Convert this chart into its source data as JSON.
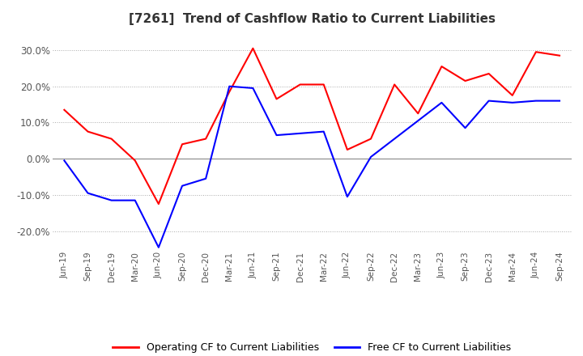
{
  "title": "[7261]  Trend of Cashflow Ratio to Current Liabilities",
  "x_labels": [
    "Jun-19",
    "Sep-19",
    "Dec-19",
    "Mar-20",
    "Jun-20",
    "Sep-20",
    "Dec-20",
    "Mar-21",
    "Jun-21",
    "Sep-21",
    "Dec-21",
    "Mar-22",
    "Jun-22",
    "Sep-22",
    "Dec-22",
    "Mar-23",
    "Jun-23",
    "Sep-23",
    "Dec-23",
    "Mar-24",
    "Jun-24",
    "Sep-24"
  ],
  "operating_cf": [
    0.135,
    0.075,
    0.055,
    -0.005,
    -0.125,
    0.04,
    0.055,
    0.185,
    0.305,
    0.165,
    0.205,
    0.205,
    0.025,
    0.055,
    0.205,
    0.125,
    0.255,
    0.215,
    0.235,
    0.175,
    0.295,
    0.285
  ],
  "free_cf": [
    -0.005,
    -0.095,
    -0.115,
    -0.115,
    -0.245,
    -0.075,
    -0.055,
    0.2,
    0.195,
    0.065,
    0.07,
    0.075,
    -0.105,
    0.005,
    0.055,
    0.105,
    0.155,
    0.085,
    0.16,
    0.155,
    0.16,
    0.16
  ],
  "operating_color": "#ff0000",
  "free_color": "#0000ff",
  "ylim": [
    -0.25,
    0.35
  ],
  "yticks": [
    -0.2,
    -0.1,
    0.0,
    0.1,
    0.2,
    0.3
  ],
  "background_color": "#ffffff",
  "grid_color": "#aaaaaa",
  "legend_labels": [
    "Operating CF to Current Liabilities",
    "Free CF to Current Liabilities"
  ]
}
